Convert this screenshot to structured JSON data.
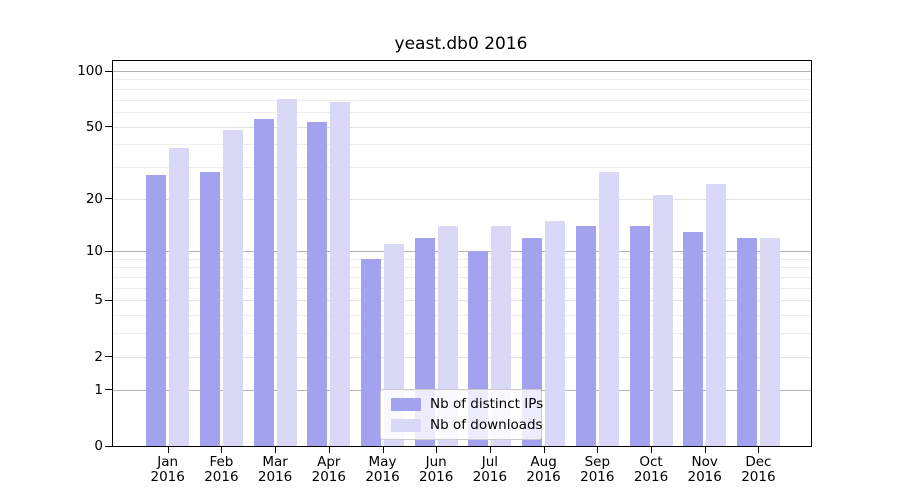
{
  "title": "yeast.db0 2016",
  "chart_data": {
    "type": "bar",
    "title": "yeast.db0 2016",
    "categories": [
      "Jan",
      "Feb",
      "Mar",
      "Apr",
      "May",
      "Jun",
      "Jul",
      "Aug",
      "Sep",
      "Oct",
      "Nov",
      "Dec"
    ],
    "category_year": "2016",
    "series": [
      {
        "name": "Nb of distinct IPs",
        "color": "#a2a2ee",
        "values": [
          27,
          28,
          55,
          53,
          9,
          12,
          10,
          12,
          14,
          14,
          13,
          12
        ]
      },
      {
        "name": "Nb of downloads",
        "color": "#d9d9f7",
        "values": [
          38,
          48,
          71,
          68,
          11,
          14,
          14,
          15,
          28,
          21,
          24,
          12
        ]
      }
    ],
    "yscale": "log10(1+x)",
    "y_ticks": [
      100,
      50,
      20,
      10,
      5,
      2,
      1,
      0
    ],
    "decade_gridlines": [
      1,
      10,
      100
    ],
    "major_gridlines": [
      2,
      5,
      20,
      50
    ],
    "minor_gridlines": [
      3,
      4,
      6,
      7,
      8,
      9,
      30,
      40,
      60,
      70,
      80,
      90
    ],
    "ylim": [
      0,
      110
    ],
    "grid": true,
    "legend_position": "lower center",
    "colors": {
      "distinct_ips_bar": "#a2a2ee",
      "downloads_bar": "#d9d9f7",
      "decade_grid": "#b3b3b3",
      "major_grid": "#e2e2e2",
      "minor_grid": "#ededed",
      "axis": "#000000"
    }
  }
}
